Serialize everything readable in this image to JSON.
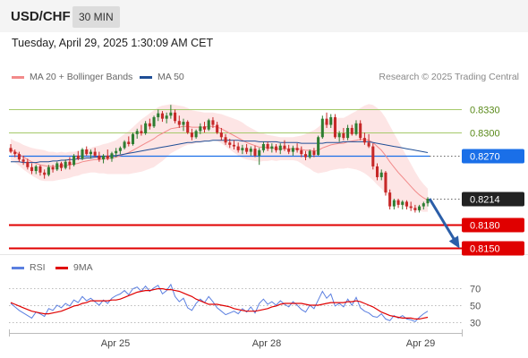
{
  "header": {
    "symbol": "USD/CHF",
    "timeframe": "30 MIN"
  },
  "datetime": "Tuesday, April 29, 2025 1:30:09 AM CET",
  "legend": {
    "items": [
      {
        "label": "MA 20 + Bollinger Bands",
        "color": "#f28a8a"
      },
      {
        "label": "MA 50",
        "color": "#1f4e96"
      }
    ],
    "credit": "Research © 2025 Trading Central"
  },
  "rsi_legend": {
    "items": [
      {
        "label": "RSI",
        "color": "#5b7fe0"
      },
      {
        "label": "9MA",
        "color": "#e00000"
      }
    ]
  },
  "colors": {
    "up": "#2e7d32",
    "down": "#c62828",
    "resistance": "#a5c96a",
    "support": "#e00000",
    "pivot": "#1a6fe8",
    "last": "#222222",
    "arrow": "#2b5ea8",
    "band_fill": "#fde0e0",
    "ma20": "#f28a8a",
    "ma50": "#1f4e96"
  },
  "chart_data": [
    {
      "type": "candlestick",
      "x_labels": [
        "Apr 25",
        "Apr 28",
        "Apr 29"
      ],
      "ylim": [
        0.8143,
        0.8356
      ],
      "levels": [
        {
          "value": 0.833,
          "label": "0.8330",
          "kind": "resistance"
        },
        {
          "value": 0.83,
          "label": "0.8300",
          "kind": "resistance"
        },
        {
          "value": 0.827,
          "label": "0.8270",
          "kind": "pivot"
        },
        {
          "value": 0.8214,
          "label": "0.8214",
          "kind": "last"
        },
        {
          "value": 0.818,
          "label": "0.8180",
          "kind": "support"
        },
        {
          "value": 0.815,
          "label": "0.8150",
          "kind": "support"
        }
      ],
      "projection": {
        "from": 0.8214,
        "to": 0.815
      },
      "ohlc": [
        [
          0.828,
          0.8285,
          0.8273,
          0.8275
        ],
        [
          0.8275,
          0.8278,
          0.8268,
          0.8272
        ],
        [
          0.8272,
          0.8275,
          0.8262,
          0.8265
        ],
        [
          0.8265,
          0.827,
          0.8258,
          0.8262
        ],
        [
          0.8262,
          0.8266,
          0.8252,
          0.8255
        ],
        [
          0.8255,
          0.826,
          0.8246,
          0.825
        ],
        [
          0.825,
          0.8258,
          0.8246,
          0.8256
        ],
        [
          0.8256,
          0.8258,
          0.8244,
          0.8248
        ],
        [
          0.8248,
          0.8252,
          0.824,
          0.8245
        ],
        [
          0.8245,
          0.8258,
          0.8243,
          0.8255
        ],
        [
          0.8255,
          0.8258,
          0.8248,
          0.8252
        ],
        [
          0.8252,
          0.8262,
          0.825,
          0.826
        ],
        [
          0.826,
          0.8262,
          0.825,
          0.8254
        ],
        [
          0.8254,
          0.8265,
          0.8252,
          0.8262
        ],
        [
          0.8262,
          0.8268,
          0.8252,
          0.8258
        ],
        [
          0.8258,
          0.8272,
          0.8256,
          0.827
        ],
        [
          0.827,
          0.8276,
          0.8264,
          0.8266
        ],
        [
          0.8266,
          0.828,
          0.8264,
          0.8278
        ],
        [
          0.8278,
          0.8282,
          0.827,
          0.8272
        ],
        [
          0.8272,
          0.8278,
          0.8266,
          0.8275
        ],
        [
          0.8275,
          0.828,
          0.8268,
          0.827
        ],
        [
          0.827,
          0.8275,
          0.8262,
          0.8265
        ],
        [
          0.8265,
          0.8272,
          0.826,
          0.827
        ],
        [
          0.827,
          0.8278,
          0.8264,
          0.8266
        ],
        [
          0.8266,
          0.8275,
          0.8262,
          0.8273
        ],
        [
          0.8273,
          0.828,
          0.8268,
          0.8276
        ],
        [
          0.8276,
          0.8282,
          0.8272,
          0.828
        ],
        [
          0.828,
          0.829,
          0.8278,
          0.8288
        ],
        [
          0.8288,
          0.8295,
          0.8282,
          0.8285
        ],
        [
          0.8285,
          0.83,
          0.8283,
          0.8298
        ],
        [
          0.8298,
          0.8305,
          0.8292,
          0.8302
        ],
        [
          0.8302,
          0.831,
          0.8296,
          0.8299
        ],
        [
          0.8299,
          0.8315,
          0.8297,
          0.8312
        ],
        [
          0.8312,
          0.8318,
          0.8304,
          0.8308
        ],
        [
          0.8308,
          0.8322,
          0.8306,
          0.832
        ],
        [
          0.832,
          0.833,
          0.8315,
          0.8325
        ],
        [
          0.8325,
          0.8328,
          0.8314,
          0.8318
        ],
        [
          0.8318,
          0.8326,
          0.8312,
          0.8322
        ],
        [
          0.8322,
          0.8336,
          0.8318,
          0.8326
        ],
        [
          0.8326,
          0.833,
          0.8312,
          0.8315
        ],
        [
          0.8315,
          0.8322,
          0.8306,
          0.831
        ],
        [
          0.831,
          0.8318,
          0.8302,
          0.8314
        ],
        [
          0.8314,
          0.8316,
          0.8298,
          0.83
        ],
        [
          0.83,
          0.8305,
          0.829,
          0.8294
        ],
        [
          0.8294,
          0.8304,
          0.8292,
          0.8302
        ],
        [
          0.8302,
          0.8312,
          0.8298,
          0.8308
        ],
        [
          0.8308,
          0.8314,
          0.83,
          0.8304
        ],
        [
          0.8304,
          0.8318,
          0.8302,
          0.8316
        ],
        [
          0.8316,
          0.832,
          0.8306,
          0.831
        ],
        [
          0.831,
          0.8314,
          0.8298,
          0.83
        ],
        [
          0.83,
          0.8306,
          0.829,
          0.8294
        ],
        [
          0.8294,
          0.8298,
          0.8284,
          0.8287
        ],
        [
          0.8287,
          0.8292,
          0.828,
          0.8284
        ],
        [
          0.8284,
          0.829,
          0.8278,
          0.8282
        ],
        [
          0.8282,
          0.8287,
          0.8274,
          0.8277
        ],
        [
          0.8277,
          0.8284,
          0.8272,
          0.828
        ],
        [
          0.828,
          0.8285,
          0.8272,
          0.8275
        ],
        [
          0.8275,
          0.8282,
          0.827,
          0.8279
        ],
        [
          0.8279,
          0.8283,
          0.8268,
          0.827
        ],
        [
          0.827,
          0.828,
          0.8258,
          0.8277
        ],
        [
          0.8277,
          0.8288,
          0.8274,
          0.8285
        ],
        [
          0.8285,
          0.8288,
          0.8276,
          0.8279
        ],
        [
          0.8279,
          0.8286,
          0.8274,
          0.8282
        ],
        [
          0.8282,
          0.8285,
          0.8274,
          0.8277
        ],
        [
          0.8277,
          0.8286,
          0.8272,
          0.8283
        ],
        [
          0.8283,
          0.829,
          0.8276,
          0.8279
        ],
        [
          0.8279,
          0.8284,
          0.8272,
          0.8275
        ],
        [
          0.8275,
          0.8283,
          0.827,
          0.828
        ],
        [
          0.828,
          0.8286,
          0.8274,
          0.8277
        ],
        [
          0.8277,
          0.8282,
          0.8268,
          0.8272
        ],
        [
          0.8272,
          0.8276,
          0.8264,
          0.8268
        ],
        [
          0.8268,
          0.8278,
          0.8266,
          0.8276
        ],
        [
          0.8276,
          0.828,
          0.8268,
          0.8271
        ],
        [
          0.8271,
          0.8296,
          0.827,
          0.8294
        ],
        [
          0.8294,
          0.8322,
          0.8292,
          0.8318
        ],
        [
          0.8318,
          0.8326,
          0.8306,
          0.831
        ],
        [
          0.831,
          0.8324,
          0.8306,
          0.832
        ],
        [
          0.832,
          0.8324,
          0.8292,
          0.8294
        ],
        [
          0.8294,
          0.8302,
          0.8288,
          0.8299
        ],
        [
          0.8299,
          0.8306,
          0.829,
          0.8293
        ],
        [
          0.8293,
          0.831,
          0.829,
          0.8306
        ],
        [
          0.8306,
          0.831,
          0.8296,
          0.8298
        ],
        [
          0.8298,
          0.8316,
          0.8296,
          0.8312
        ],
        [
          0.8312,
          0.8316,
          0.829,
          0.8293
        ],
        [
          0.8293,
          0.83,
          0.8284,
          0.8287
        ],
        [
          0.8287,
          0.8298,
          0.828,
          0.8282
        ],
        [
          0.8282,
          0.8286,
          0.8252,
          0.8256
        ],
        [
          0.8256,
          0.826,
          0.8238,
          0.8242
        ],
        [
          0.8242,
          0.8252,
          0.8238,
          0.8248
        ],
        [
          0.8248,
          0.825,
          0.8218,
          0.8222
        ],
        [
          0.8222,
          0.8226,
          0.82,
          0.8204
        ],
        [
          0.8204,
          0.8214,
          0.82,
          0.8212
        ],
        [
          0.8212,
          0.8214,
          0.8202,
          0.8206
        ],
        [
          0.8206,
          0.8212,
          0.82,
          0.821
        ],
        [
          0.821,
          0.8212,
          0.82,
          0.8204
        ],
        [
          0.8204,
          0.821,
          0.8198,
          0.8202
        ],
        [
          0.8202,
          0.8206,
          0.8196,
          0.8199
        ],
        [
          0.8199,
          0.8206,
          0.8196,
          0.8204
        ],
        [
          0.8204,
          0.821,
          0.82,
          0.8208
        ],
        [
          0.8208,
          0.8216,
          0.8204,
          0.8214
        ]
      ],
      "ma20": [
        0.8278,
        0.8275,
        0.8272,
        0.8268,
        0.8265,
        0.8262,
        0.826,
        0.8258,
        0.8257,
        0.8256,
        0.8256,
        0.8256,
        0.8257,
        0.8257,
        0.8258,
        0.8259,
        0.826,
        0.8262,
        0.8263,
        0.8264,
        0.8265,
        0.8265,
        0.8266,
        0.8266,
        0.8267,
        0.8268,
        0.827,
        0.8272,
        0.8274,
        0.8277,
        0.828,
        0.8283,
        0.8286,
        0.8289,
        0.8292,
        0.8296,
        0.8299,
        0.8302,
        0.8305,
        0.8306,
        0.8307,
        0.8308,
        0.8308,
        0.8307,
        0.8307,
        0.8307,
        0.8307,
        0.8308,
        0.8308,
        0.8307,
        0.8305,
        0.8302,
        0.8299,
        0.8296,
        0.8293,
        0.829,
        0.8287,
        0.8285,
        0.8283,
        0.8281,
        0.8281,
        0.828,
        0.828,
        0.8279,
        0.8279,
        0.8279,
        0.8279,
        0.8279,
        0.8279,
        0.8278,
        0.8277,
        0.8277,
        0.8276,
        0.8277,
        0.828,
        0.8282,
        0.8284,
        0.8285,
        0.8286,
        0.8286,
        0.8288,
        0.8289,
        0.829,
        0.8291,
        0.8291,
        0.829,
        0.8287,
        0.8282,
        0.8277,
        0.827,
        0.8262,
        0.8255,
        0.8248,
        0.8242,
        0.8236,
        0.823,
        0.8224,
        0.8219,
        0.8215,
        0.8212
      ],
      "ma50": [
        0.8262,
        0.8262,
        0.8262,
        0.8261,
        0.8261,
        0.8261,
        0.8261,
        0.8262,
        0.8262,
        0.8262,
        0.8263,
        0.8263,
        0.8264,
        0.8264,
        0.8265,
        0.8265,
        0.8266,
        0.8266,
        0.8267,
        0.8267,
        0.8268,
        0.8268,
        0.8269,
        0.8269,
        0.827,
        0.827,
        0.8271,
        0.8272,
        0.8273,
        0.8274,
        0.8275,
        0.8276,
        0.8277,
        0.8278,
        0.8279,
        0.828,
        0.8281,
        0.8282,
        0.8283,
        0.8284,
        0.8285,
        0.8286,
        0.8287,
        0.8287,
        0.8288,
        0.8288,
        0.8289,
        0.8289,
        0.829,
        0.829,
        0.829,
        0.829,
        0.829,
        0.829,
        0.829,
        0.8289,
        0.8289,
        0.8289,
        0.8289,
        0.8288,
        0.8288,
        0.8288,
        0.8288,
        0.8288,
        0.8287,
        0.8287,
        0.8287,
        0.8287,
        0.8287,
        0.8286,
        0.8286,
        0.8286,
        0.8286,
        0.8286,
        0.8286,
        0.8287,
        0.8287,
        0.8287,
        0.8287,
        0.8288,
        0.8288,
        0.8288,
        0.8288,
        0.8288,
        0.8288,
        0.8288,
        0.8287,
        0.8286,
        0.8285,
        0.8284,
        0.8283,
        0.8282,
        0.8281,
        0.828,
        0.8279,
        0.8278,
        0.8277,
        0.8276,
        0.8275,
        0.8274
      ],
      "bb_width": [
        0.0014,
        0.0014,
        0.0015,
        0.0016,
        0.0017,
        0.0018,
        0.0019,
        0.002,
        0.002,
        0.0019,
        0.0019,
        0.0018,
        0.0018,
        0.0017,
        0.0017,
        0.0016,
        0.0016,
        0.0016,
        0.0016,
        0.0016,
        0.0017,
        0.0018,
        0.0019,
        0.002,
        0.0021,
        0.0022,
        0.0024,
        0.0026,
        0.0028,
        0.003,
        0.0032,
        0.0034,
        0.0035,
        0.0036,
        0.0037,
        0.0037,
        0.0036,
        0.0034,
        0.0032,
        0.003,
        0.0028,
        0.0026,
        0.0024,
        0.0022,
        0.0021,
        0.002,
        0.0019,
        0.0018,
        0.0018,
        0.0018,
        0.0019,
        0.002,
        0.0021,
        0.0022,
        0.0023,
        0.0023,
        0.0022,
        0.0021,
        0.002,
        0.0019,
        0.0018,
        0.0017,
        0.0016,
        0.0016,
        0.0015,
        0.0015,
        0.0015,
        0.0015,
        0.0016,
        0.0018,
        0.0021,
        0.0024,
        0.0027,
        0.003,
        0.0032,
        0.0033,
        0.0033,
        0.0033,
        0.0033,
        0.0033,
        0.0034,
        0.0036,
        0.0038,
        0.0041,
        0.0044,
        0.0047,
        0.0049,
        0.005,
        0.005,
        0.0049,
        0.0047,
        0.0044,
        0.0041,
        0.0037,
        0.0033,
        0.0029,
        0.0025,
        0.0021,
        0.0018,
        0.0015
      ]
    },
    {
      "type": "line",
      "y_ticks": [
        70,
        50,
        30
      ],
      "ylim": [
        22,
        80
      ],
      "series": [
        {
          "name": "RSI",
          "values": [
            52,
            48,
            44,
            41,
            38,
            35,
            42,
            40,
            37,
            46,
            44,
            50,
            47,
            52,
            49,
            56,
            53,
            60,
            55,
            58,
            54,
            50,
            56,
            52,
            58,
            61,
            63,
            67,
            62,
            69,
            71,
            66,
            72,
            66,
            70,
            73,
            63,
            67,
            74,
            60,
            54,
            58,
            47,
            44,
            52,
            57,
            53,
            60,
            54,
            47,
            43,
            39,
            41,
            43,
            40,
            46,
            42,
            48,
            41,
            52,
            57,
            51,
            54,
            50,
            55,
            51,
            48,
            54,
            50,
            45,
            42,
            50,
            46,
            56,
            66,
            58,
            63,
            49,
            52,
            48,
            57,
            50,
            59,
            47,
            43,
            41,
            37,
            36,
            40,
            34,
            32,
            38,
            35,
            38,
            34,
            33,
            31,
            36,
            40,
            43
          ]
        },
        {
          "name": "9MA",
          "values": [
            53,
            51,
            49,
            47,
            45,
            43,
            42,
            41,
            40,
            40,
            41,
            42,
            43,
            45,
            47,
            49,
            50,
            52,
            53,
            55,
            55,
            55,
            55,
            55,
            56,
            56,
            57,
            59,
            61,
            63,
            65,
            66,
            67,
            67,
            68,
            69,
            69,
            68,
            68,
            67,
            66,
            64,
            62,
            60,
            57,
            55,
            53,
            51,
            51,
            51,
            50,
            49,
            48,
            46,
            45,
            44,
            43,
            43,
            43,
            44,
            45,
            46,
            48,
            49,
            51,
            52,
            52,
            52,
            52,
            52,
            51,
            50,
            50,
            50,
            51,
            52,
            53,
            53,
            53,
            53,
            54,
            54,
            55,
            54,
            52,
            50,
            48,
            45,
            42,
            40,
            38,
            37,
            36,
            35,
            35,
            35,
            34,
            34,
            35,
            36
          ]
        }
      ]
    }
  ]
}
